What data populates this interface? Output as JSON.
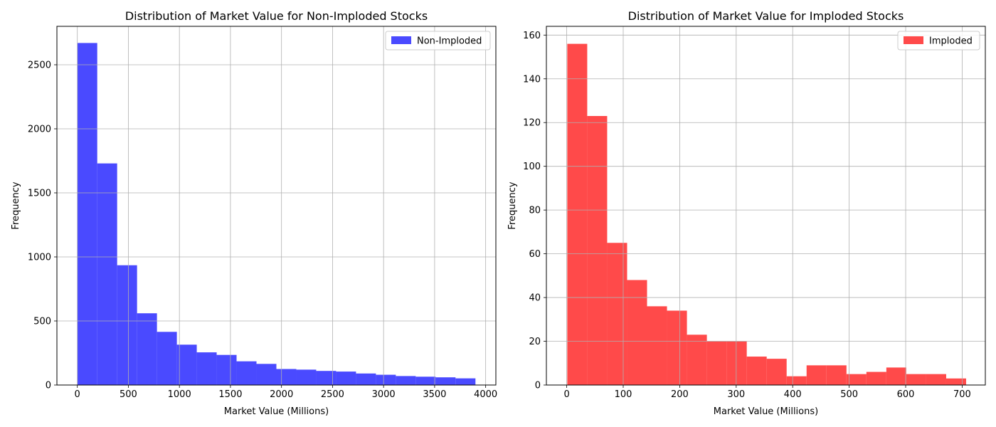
{
  "chart_data": [
    {
      "type": "bar",
      "title": "Distribution of Market Value for Non-Imploded Stocks",
      "xlabel": "Market Value (Millions)",
      "ylabel": "Frequency",
      "xlim": [
        -200,
        4100
      ],
      "ylim": [
        0,
        2800
      ],
      "xticks": [
        0,
        500,
        1000,
        1500,
        2000,
        2500,
        3000,
        3500,
        4000
      ],
      "yticks": [
        0,
        500,
        1000,
        1500,
        2000,
        2500
      ],
      "grid": true,
      "legend_position": "top-right",
      "series": [
        {
          "name": "Non-Imploded",
          "color": "#4a4aff",
          "bin_edges": [
            0,
            195,
            390,
            585,
            780,
            975,
            1170,
            1365,
            1560,
            1755,
            1950,
            2145,
            2340,
            2535,
            2730,
            2925,
            3120,
            3315,
            3510,
            3705,
            3900
          ],
          "values": [
            2670,
            1730,
            935,
            560,
            415,
            315,
            255,
            235,
            185,
            165,
            125,
            120,
            110,
            105,
            90,
            80,
            70,
            65,
            60,
            52
          ]
        }
      ]
    },
    {
      "type": "bar",
      "title": "Distribution of Market Value for Imploded Stocks",
      "xlabel": "Market Value (Millions)",
      "ylabel": "Frequency",
      "xlim": [
        -36,
        741
      ],
      "ylim": [
        0,
        164
      ],
      "xticks": [
        0,
        100,
        200,
        300,
        400,
        500,
        600,
        700
      ],
      "yticks": [
        0,
        20,
        40,
        60,
        80,
        100,
        120,
        140,
        160
      ],
      "grid": true,
      "legend_position": "top-right",
      "series": [
        {
          "name": "Imploded",
          "color": "#ff4a4a",
          "bin_edges": [
            1,
            36.3,
            71.6,
            106.9,
            142.2,
            177.5,
            212.8,
            248.1,
            283.4,
            318.7,
            354,
            389.3,
            424.6,
            459.9,
            495.2,
            530.5,
            565.8,
            601.1,
            636.4,
            671.7,
            707
          ],
          "values": [
            156,
            123,
            65,
            48,
            36,
            34,
            23,
            20,
            20,
            13,
            12,
            4,
            9,
            9,
            5,
            6,
            8,
            5,
            5,
            3
          ]
        }
      ]
    }
  ]
}
